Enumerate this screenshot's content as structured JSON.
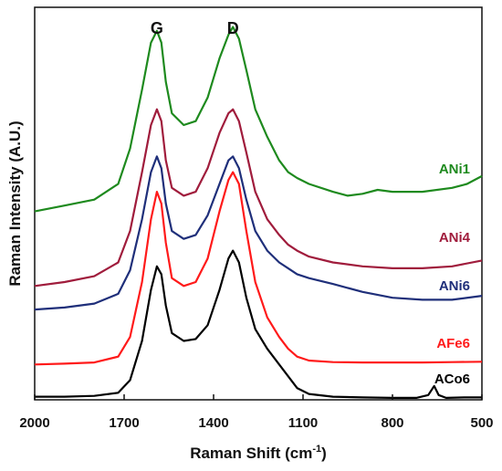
{
  "chart_data": {
    "type": "line",
    "xlabel": "Raman Shift (cm",
    "xlabel_sup": "-1",
    "xlabel_close": ")",
    "ylabel": "Raman Intensity  (A.U.)",
    "xlim": [
      2000,
      500
    ],
    "x_ticks": [
      2000,
      1700,
      1400,
      1100,
      800,
      500
    ],
    "ylim": [
      0,
      10
    ],
    "annotations": [
      {
        "text": "G",
        "x": 1590
      },
      {
        "text": "D",
        "x": 1335
      }
    ],
    "grid": false,
    "series": [
      {
        "name": "ACo6",
        "color": "#000000",
        "offset": 0.08,
        "points": [
          [
            2000,
            0.08
          ],
          [
            1900,
            0.08
          ],
          [
            1800,
            0.1
          ],
          [
            1720,
            0.18
          ],
          [
            1680,
            0.5
          ],
          [
            1640,
            1.5
          ],
          [
            1610,
            2.8
          ],
          [
            1590,
            3.4
          ],
          [
            1575,
            3.2
          ],
          [
            1560,
            2.4
          ],
          [
            1540,
            1.7
          ],
          [
            1500,
            1.5
          ],
          [
            1460,
            1.55
          ],
          [
            1420,
            1.9
          ],
          [
            1380,
            2.8
          ],
          [
            1350,
            3.6
          ],
          [
            1335,
            3.8
          ],
          [
            1315,
            3.5
          ],
          [
            1290,
            2.6
          ],
          [
            1260,
            1.8
          ],
          [
            1220,
            1.3
          ],
          [
            1180,
            0.9
          ],
          [
            1150,
            0.6
          ],
          [
            1120,
            0.3
          ],
          [
            1080,
            0.15
          ],
          [
            1000,
            0.08
          ],
          [
            900,
            0.06
          ],
          [
            800,
            0.05
          ],
          [
            720,
            0.05
          ],
          [
            680,
            0.12
          ],
          [
            660,
            0.35
          ],
          [
            645,
            0.12
          ],
          [
            620,
            0.05
          ],
          [
            560,
            0.06
          ],
          [
            500,
            0.06
          ]
        ]
      },
      {
        "name": "AFe6",
        "color": "#ff1a1a",
        "offset": 0.9,
        "points": [
          [
            2000,
            0.9
          ],
          [
            1900,
            0.92
          ],
          [
            1800,
            0.95
          ],
          [
            1720,
            1.1
          ],
          [
            1680,
            1.6
          ],
          [
            1640,
            3.0
          ],
          [
            1610,
            4.6
          ],
          [
            1590,
            5.3
          ],
          [
            1575,
            5.0
          ],
          [
            1560,
            4.0
          ],
          [
            1540,
            3.1
          ],
          [
            1500,
            2.9
          ],
          [
            1460,
            3.0
          ],
          [
            1420,
            3.6
          ],
          [
            1380,
            4.8
          ],
          [
            1350,
            5.6
          ],
          [
            1335,
            5.8
          ],
          [
            1315,
            5.5
          ],
          [
            1290,
            4.3
          ],
          [
            1260,
            3.0
          ],
          [
            1220,
            2.1
          ],
          [
            1180,
            1.6
          ],
          [
            1150,
            1.3
          ],
          [
            1120,
            1.1
          ],
          [
            1080,
            1.0
          ],
          [
            1000,
            0.96
          ],
          [
            900,
            0.95
          ],
          [
            800,
            0.95
          ],
          [
            700,
            0.95
          ],
          [
            600,
            0.96
          ],
          [
            500,
            0.97
          ]
        ]
      },
      {
        "name": "ANi6",
        "color": "#1f2f7a",
        "offset": 2.3,
        "points": [
          [
            2000,
            2.3
          ],
          [
            1900,
            2.35
          ],
          [
            1800,
            2.45
          ],
          [
            1720,
            2.7
          ],
          [
            1680,
            3.3
          ],
          [
            1640,
            4.6
          ],
          [
            1610,
            5.8
          ],
          [
            1590,
            6.2
          ],
          [
            1575,
            5.9
          ],
          [
            1560,
            5.0
          ],
          [
            1540,
            4.3
          ],
          [
            1500,
            4.1
          ],
          [
            1460,
            4.2
          ],
          [
            1420,
            4.7
          ],
          [
            1380,
            5.5
          ],
          [
            1350,
            6.1
          ],
          [
            1335,
            6.2
          ],
          [
            1315,
            5.9
          ],
          [
            1290,
            5.1
          ],
          [
            1260,
            4.3
          ],
          [
            1220,
            3.8
          ],
          [
            1180,
            3.5
          ],
          [
            1150,
            3.35
          ],
          [
            1120,
            3.2
          ],
          [
            1080,
            3.1
          ],
          [
            1000,
            2.95
          ],
          [
            900,
            2.75
          ],
          [
            800,
            2.6
          ],
          [
            700,
            2.55
          ],
          [
            600,
            2.55
          ],
          [
            500,
            2.65
          ]
        ]
      },
      {
        "name": "ANi4",
        "color": "#a01c3c",
        "offset": 2.9,
        "points": [
          [
            2000,
            2.9
          ],
          [
            1900,
            3.0
          ],
          [
            1800,
            3.15
          ],
          [
            1720,
            3.5
          ],
          [
            1680,
            4.3
          ],
          [
            1640,
            5.8
          ],
          [
            1610,
            7.0
          ],
          [
            1590,
            7.4
          ],
          [
            1575,
            7.1
          ],
          [
            1560,
            6.1
          ],
          [
            1540,
            5.4
          ],
          [
            1500,
            5.2
          ],
          [
            1460,
            5.3
          ],
          [
            1420,
            5.9
          ],
          [
            1380,
            6.8
          ],
          [
            1350,
            7.3
          ],
          [
            1335,
            7.4
          ],
          [
            1315,
            7.1
          ],
          [
            1290,
            6.3
          ],
          [
            1260,
            5.3
          ],
          [
            1220,
            4.6
          ],
          [
            1180,
            4.2
          ],
          [
            1150,
            3.95
          ],
          [
            1120,
            3.8
          ],
          [
            1080,
            3.65
          ],
          [
            1000,
            3.5
          ],
          [
            900,
            3.4
          ],
          [
            800,
            3.35
          ],
          [
            700,
            3.35
          ],
          [
            600,
            3.4
          ],
          [
            500,
            3.55
          ]
        ]
      },
      {
        "name": "ANi1",
        "color": "#1e8a1e",
        "offset": 4.8,
        "points": [
          [
            2000,
            4.8
          ],
          [
            1900,
            4.95
          ],
          [
            1800,
            5.1
          ],
          [
            1720,
            5.5
          ],
          [
            1680,
            6.4
          ],
          [
            1640,
            7.9
          ],
          [
            1610,
            9.1
          ],
          [
            1590,
            9.4
          ],
          [
            1575,
            9.1
          ],
          [
            1560,
            8.1
          ],
          [
            1540,
            7.3
          ],
          [
            1500,
            7.0
          ],
          [
            1460,
            7.1
          ],
          [
            1420,
            7.7
          ],
          [
            1380,
            8.7
          ],
          [
            1350,
            9.3
          ],
          [
            1335,
            9.5
          ],
          [
            1315,
            9.2
          ],
          [
            1290,
            8.4
          ],
          [
            1260,
            7.4
          ],
          [
            1220,
            6.7
          ],
          [
            1180,
            6.1
          ],
          [
            1150,
            5.8
          ],
          [
            1120,
            5.65
          ],
          [
            1080,
            5.5
          ],
          [
            1000,
            5.3
          ],
          [
            950,
            5.2
          ],
          [
            900,
            5.25
          ],
          [
            850,
            5.35
          ],
          [
            800,
            5.3
          ],
          [
            700,
            5.3
          ],
          [
            600,
            5.4
          ],
          [
            550,
            5.5
          ],
          [
            500,
            5.7
          ]
        ]
      }
    ],
    "label_order_top_to_bottom": [
      "ANi1",
      "ANi4",
      "ANi6",
      "AFe6",
      "ACo6"
    ]
  }
}
